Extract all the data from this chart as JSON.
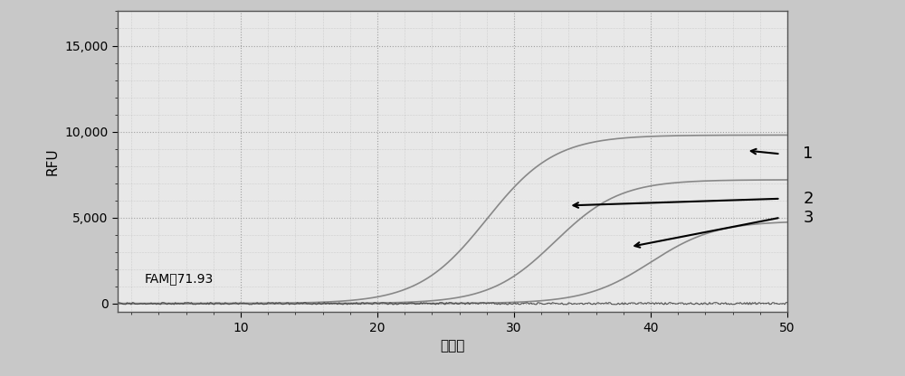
{
  "title": "",
  "xlabel": "循环数",
  "ylabel": "RFU",
  "xlim": [
    1,
    50
  ],
  "ylim": [
    -500,
    17000
  ],
  "yticks": [
    0,
    5000,
    10000,
    15000
  ],
  "ytick_labels": [
    "0",
    "5,000",
    "10,000",
    "15,000"
  ],
  "xticks": [
    10,
    20,
    30,
    40,
    50
  ],
  "annotation_text": "FAM：71.93",
  "curve1": {
    "midpoint": 28,
    "L": 9800,
    "k": 0.4,
    "color": "#888888"
  },
  "curve2": {
    "midpoint": 33,
    "L": 7200,
    "k": 0.42,
    "color": "#888888"
  },
  "curve3": {
    "midpoint": 40,
    "L": 4800,
    "k": 0.42,
    "color": "#888888"
  },
  "baseline_color": "#444444",
  "bg_color": "#c8c8c8",
  "plot_bg_color": "#e8e8e8",
  "grid_color": "#999999",
  "label1": "1",
  "label2": "2",
  "label3": "3"
}
